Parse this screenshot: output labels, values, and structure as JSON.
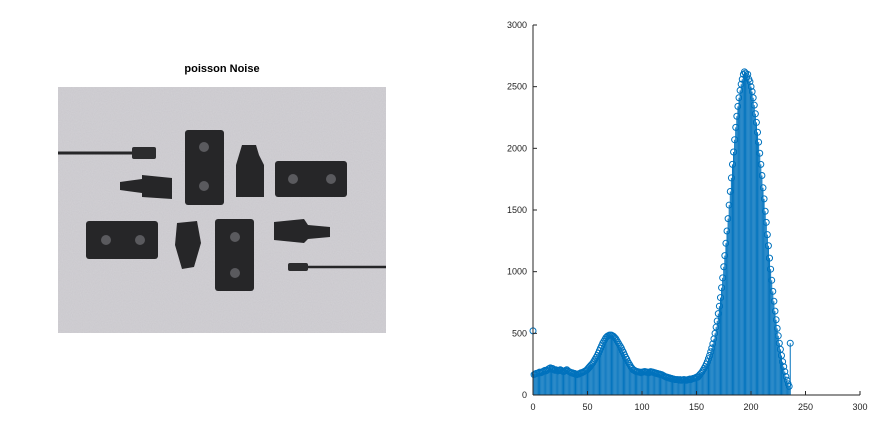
{
  "image_panel": {
    "title": "poisson Noise",
    "background_color": "#c9c7cc",
    "object_color": "#262628"
  },
  "chart_data": {
    "type": "stem",
    "title": "",
    "xlabel": "",
    "ylabel": "",
    "xlim": [
      0,
      300
    ],
    "ylim": [
      0,
      3000
    ],
    "xticks": [
      0,
      50,
      100,
      150,
      200,
      250,
      300
    ],
    "yticks": [
      0,
      500,
      1000,
      1500,
      2000,
      2500,
      3000
    ],
    "series_color": "#0072bd",
    "grid": false,
    "x_range": [
      0,
      255
    ],
    "values": [
      520,
      165,
      170,
      175,
      175,
      180,
      185,
      180,
      185,
      190,
      195,
      200,
      195,
      200,
      210,
      215,
      220,
      210,
      215,
      205,
      200,
      205,
      200,
      195,
      200,
      205,
      200,
      195,
      190,
      195,
      200,
      205,
      195,
      190,
      185,
      180,
      180,
      175,
      175,
      170,
      165,
      170,
      170,
      175,
      180,
      180,
      185,
      190,
      195,
      200,
      210,
      220,
      230,
      240,
      250,
      260,
      275,
      290,
      305,
      320,
      340,
      360,
      380,
      400,
      420,
      435,
      450,
      465,
      475,
      480,
      485,
      485,
      485,
      480,
      475,
      465,
      455,
      440,
      425,
      410,
      395,
      380,
      360,
      345,
      325,
      305,
      290,
      270,
      255,
      240,
      225,
      215,
      205,
      200,
      195,
      190,
      190,
      185,
      185,
      180,
      185,
      185,
      190,
      190,
      185,
      185,
      180,
      185,
      190,
      185,
      185,
      180,
      180,
      175,
      175,
      170,
      170,
      165,
      165,
      160,
      155,
      150,
      145,
      145,
      140,
      140,
      135,
      135,
      130,
      130,
      125,
      125,
      125,
      125,
      120,
      125,
      120,
      120,
      125,
      125,
      120,
      120,
      125,
      125,
      130,
      125,
      130,
      135,
      135,
      140,
      145,
      145,
      155,
      165,
      175,
      185,
      200,
      215,
      230,
      250,
      270,
      295,
      320,
      350,
      380,
      415,
      455,
      500,
      550,
      600,
      660,
      720,
      790,
      870,
      950,
      1040,
      1130,
      1230,
      1330,
      1430,
      1540,
      1650,
      1760,
      1870,
      1970,
      2070,
      2170,
      2260,
      2340,
      2410,
      2470,
      2520,
      2560,
      2600,
      2620,
      2610,
      2580,
      2600,
      2560,
      2540,
      2500,
      2460,
      2410,
      2350,
      2280,
      2210,
      2130,
      2050,
      1960,
      1870,
      1780,
      1680,
      1590,
      1490,
      1400,
      1300,
      1210,
      1110,
      1020,
      930,
      840,
      760,
      680,
      610,
      540,
      480,
      420,
      370,
      320,
      270,
      230,
      190,
      150,
      120,
      90,
      70,
      420
    ]
  }
}
